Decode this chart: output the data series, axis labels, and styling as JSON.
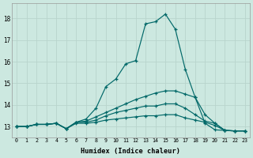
{
  "xlabel": "Humidex (Indice chaleur)",
  "ylabel": "",
  "bg_color": "#cce8e0",
  "grid_color_major": "#b8d4cc",
  "grid_color_minor": "#c8e0d8",
  "line_color": "#006868",
  "xlim": [
    -0.5,
    23.5
  ],
  "ylim": [
    12.5,
    18.7
  ],
  "yticks": [
    13,
    14,
    15,
    16,
    17,
    18
  ],
  "xticks": [
    0,
    1,
    2,
    3,
    4,
    5,
    6,
    7,
    8,
    9,
    10,
    11,
    12,
    13,
    14,
    15,
    16,
    17,
    18,
    19,
    20,
    21,
    22,
    23
  ],
  "series": [
    [
      13.0,
      13.0,
      13.1,
      13.1,
      13.15,
      12.9,
      13.2,
      13.35,
      13.85,
      14.85,
      15.2,
      15.9,
      16.05,
      17.75,
      17.85,
      18.2,
      17.5,
      15.65,
      14.35,
      13.15,
      12.85,
      12.82,
      12.8,
      12.8
    ],
    [
      13.0,
      13.0,
      13.1,
      13.1,
      13.15,
      12.9,
      13.2,
      13.25,
      13.45,
      13.65,
      13.85,
      14.05,
      14.25,
      14.4,
      14.55,
      14.65,
      14.65,
      14.5,
      14.35,
      13.55,
      13.15,
      12.82,
      12.8,
      12.8
    ],
    [
      13.0,
      13.0,
      13.1,
      13.1,
      13.15,
      12.9,
      13.2,
      13.2,
      13.3,
      13.5,
      13.65,
      13.75,
      13.85,
      13.95,
      13.95,
      14.05,
      14.05,
      13.85,
      13.55,
      13.25,
      13.15,
      12.82,
      12.8,
      12.8
    ],
    [
      13.0,
      13.0,
      13.1,
      13.1,
      13.15,
      12.9,
      13.15,
      13.15,
      13.2,
      13.3,
      13.35,
      13.4,
      13.45,
      13.5,
      13.5,
      13.55,
      13.55,
      13.4,
      13.3,
      13.2,
      13.05,
      12.82,
      12.8,
      12.8
    ]
  ]
}
